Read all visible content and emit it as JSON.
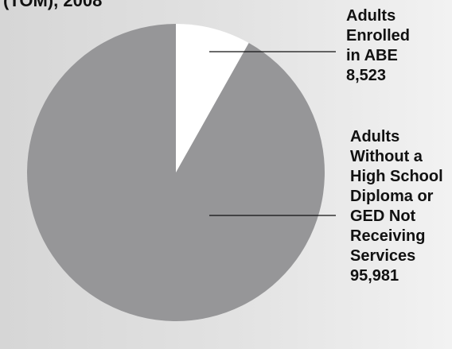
{
  "header_fragment": "(TOM), 2008",
  "chart_data": {
    "type": "pie",
    "title": "",
    "start_angle_deg": 0,
    "direction": "clockwise",
    "slices": [
      {
        "label_lines": [
          "Adults",
          "Enrolled",
          "in ABE"
        ],
        "value": 8523,
        "value_label": "8,523",
        "color": "#ffffff"
      },
      {
        "label_lines": [
          "Adults",
          "Without a",
          "High School",
          "Diploma or",
          "GED Not",
          "Receiving",
          "Services"
        ],
        "value": 95981,
        "value_label": "95,981",
        "color": "#969698"
      }
    ]
  }
}
